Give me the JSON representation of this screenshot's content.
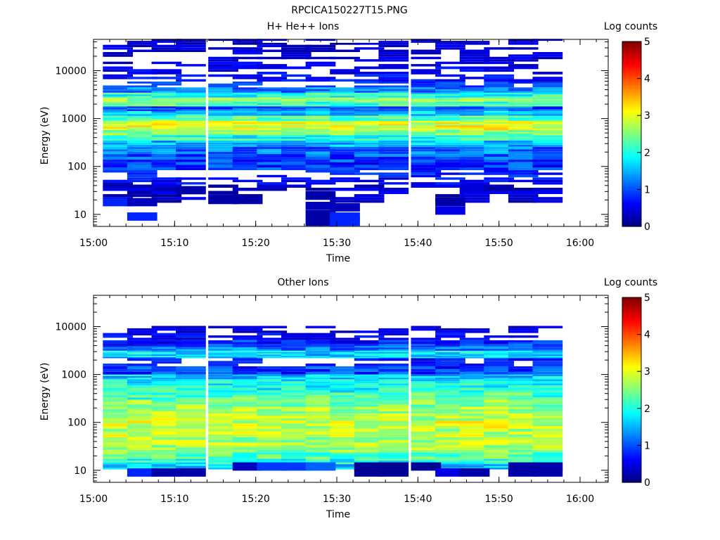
{
  "figure_title": "RPCICA150227T15.PNG",
  "chart_data": [
    {
      "type": "heatmap",
      "title": "H+ He++ Ions",
      "xlabel": "Time",
      "ylabel": "Energy (eV)",
      "colorbar_label": "Log counts",
      "colorbar_ticks": [
        "0",
        "1",
        "2",
        "3",
        "4",
        "5"
      ],
      "colorbar_range": [
        0,
        5
      ],
      "colormap": "jet",
      "x_ticks": [
        "15:00",
        "15:10",
        "15:20",
        "15:30",
        "15:40",
        "15:50",
        "16:00"
      ],
      "x_range": [
        "15:00",
        "16:03"
      ],
      "y_ticks": [
        "10",
        "100",
        "1000",
        "10000"
      ],
      "y_scale": "log",
      "y_range": [
        5.6,
        45000
      ],
      "time_bins": [
        "15:03",
        "15:06",
        "15:09",
        "15:12",
        "15:16",
        "15:19",
        "15:22",
        "15:25",
        "15:28",
        "15:31",
        "15:34",
        "15:37",
        "15:41",
        "15:44",
        "15:47",
        "15:50",
        "15:53",
        "15:56"
      ],
      "energy_profile": [
        {
          "e": 40000,
          "v": 0.1
        },
        {
          "e": 30000,
          "v": 0.2
        },
        {
          "e": 20000,
          "v": 0.25
        },
        {
          "e": 15000,
          "v": 0.3
        },
        {
          "e": 10000,
          "v": 0.35
        },
        {
          "e": 7000,
          "v": 0.45
        },
        {
          "e": 5000,
          "v": 0.7
        },
        {
          "e": 4000,
          "v": 1.2
        },
        {
          "e": 3000,
          "v": 2.0
        },
        {
          "e": 2500,
          "v": 2.6
        },
        {
          "e": 2000,
          "v": 2.2
        },
        {
          "e": 1600,
          "v": 1.0
        },
        {
          "e": 1300,
          "v": 1.6
        },
        {
          "e": 1000,
          "v": 2.3
        },
        {
          "e": 800,
          "v": 3.0
        },
        {
          "e": 650,
          "v": 3.0
        },
        {
          "e": 500,
          "v": 2.5
        },
        {
          "e": 400,
          "v": 2.0
        },
        {
          "e": 300,
          "v": 1.5
        },
        {
          "e": 220,
          "v": 1.2
        },
        {
          "e": 150,
          "v": 1.0
        },
        {
          "e": 100,
          "v": 0.9
        },
        {
          "e": 70,
          "v": 0.6
        },
        {
          "e": 50,
          "v": 0.4
        },
        {
          "e": 35,
          "v": 0.2
        },
        {
          "e": 20,
          "v": 0.1
        }
      ],
      "low_energy_cells": [
        {
          "t": "15:03",
          "e": 18,
          "v": 0.8
        },
        {
          "t": "15:06",
          "e": 18,
          "v": 0.3
        },
        {
          "t": "15:06",
          "e": 9,
          "v": 0.8
        },
        {
          "t": "15:12",
          "e": 32,
          "v": 0.2
        },
        {
          "t": "15:16",
          "e": 20,
          "v": 0.2
        },
        {
          "t": "15:19",
          "e": 20,
          "v": 0.2
        },
        {
          "t": "15:28",
          "e": 25,
          "v": 0.2
        },
        {
          "t": "15:28",
          "e": 15,
          "v": 0.3
        },
        {
          "t": "15:28",
          "e": 10,
          "v": 0.2
        },
        {
          "t": "15:28",
          "e": 7,
          "v": 0.2
        },
        {
          "t": "15:31",
          "e": 14,
          "v": 0.3
        },
        {
          "t": "15:31",
          "e": 9,
          "v": 0.8
        },
        {
          "t": "15:31",
          "e": 7,
          "v": 0.8
        },
        {
          "t": "15:44",
          "e": 12,
          "v": 0.5
        },
        {
          "t": "15:44",
          "e": 18,
          "v": 0.2
        }
      ]
    },
    {
      "type": "heatmap",
      "title": "Other Ions",
      "xlabel": "Time",
      "ylabel": "Energy (eV)",
      "colorbar_label": "Log counts",
      "colorbar_ticks": [
        "0",
        "1",
        "2",
        "3",
        "4",
        "5"
      ],
      "colorbar_range": [
        0,
        5
      ],
      "colormap": "jet",
      "x_ticks": [
        "15:00",
        "15:10",
        "15:20",
        "15:30",
        "15:40",
        "15:50",
        "16:00"
      ],
      "x_range": [
        "15:00",
        "16:03"
      ],
      "y_ticks": [
        "10",
        "100",
        "1000",
        "10000"
      ],
      "y_scale": "log",
      "y_range": [
        5.6,
        45000
      ],
      "time_bins": [
        "15:03",
        "15:06",
        "15:09",
        "15:12",
        "15:16",
        "15:19",
        "15:22",
        "15:25",
        "15:28",
        "15:31",
        "15:34",
        "15:37",
        "15:41",
        "15:44",
        "15:47",
        "15:50",
        "15:53",
        "15:56"
      ],
      "energy_profile": [
        {
          "e": 9000,
          "v": 0.2
        },
        {
          "e": 6000,
          "v": 0.4
        },
        {
          "e": 4500,
          "v": 0.8
        },
        {
          "e": 3500,
          "v": 1.2
        },
        {
          "e": 2800,
          "v": 1.8
        },
        {
          "e": 2400,
          "v": 1.6
        },
        {
          "e": 2000,
          "v": 0.5
        },
        {
          "e": 1100,
          "v": 0.9
        },
        {
          "e": 900,
          "v": 1.6
        },
        {
          "e": 700,
          "v": 1.9
        },
        {
          "e": 500,
          "v": 2.0
        },
        {
          "e": 350,
          "v": 2.2
        },
        {
          "e": 250,
          "v": 2.5
        },
        {
          "e": 180,
          "v": 2.7
        },
        {
          "e": 130,
          "v": 2.8
        },
        {
          "e": 90,
          "v": 2.9
        },
        {
          "e": 60,
          "v": 2.8
        },
        {
          "e": 40,
          "v": 2.7
        },
        {
          "e": 28,
          "v": 2.6
        },
        {
          "e": 20,
          "v": 2.3
        },
        {
          "e": 15,
          "v": 2.0
        },
        {
          "e": 12,
          "v": 1.6
        }
      ],
      "low_energy_cells": [
        {
          "t": "15:06",
          "e": 9,
          "v": 0.8
        },
        {
          "t": "15:09",
          "e": 9,
          "v": 0.2
        },
        {
          "t": "15:12",
          "e": 9,
          "v": 0.2
        },
        {
          "t": "15:19",
          "e": 12,
          "v": 0.3
        },
        {
          "t": "15:22",
          "e": 12,
          "v": 0.9
        },
        {
          "t": "15:25",
          "e": 12,
          "v": 0.9
        },
        {
          "t": "15:28",
          "e": 12,
          "v": 1.1
        },
        {
          "t": "15:34",
          "e": 12,
          "v": 0.1
        },
        {
          "t": "15:34",
          "e": 9,
          "v": 0.1
        },
        {
          "t": "15:37",
          "e": 12,
          "v": 0.1
        },
        {
          "t": "15:37",
          "e": 9,
          "v": 0.1
        },
        {
          "t": "15:41",
          "e": 12,
          "v": 0.1
        },
        {
          "t": "15:44",
          "e": 9,
          "v": 0.5
        },
        {
          "t": "15:47",
          "e": 9,
          "v": 0.2
        },
        {
          "t": "15:53",
          "e": 12,
          "v": 0.2
        },
        {
          "t": "15:53",
          "e": 9,
          "v": 0.2
        },
        {
          "t": "15:56",
          "e": 12,
          "v": 0.2
        },
        {
          "t": "15:56",
          "e": 9,
          "v": 0.2
        }
      ]
    }
  ]
}
